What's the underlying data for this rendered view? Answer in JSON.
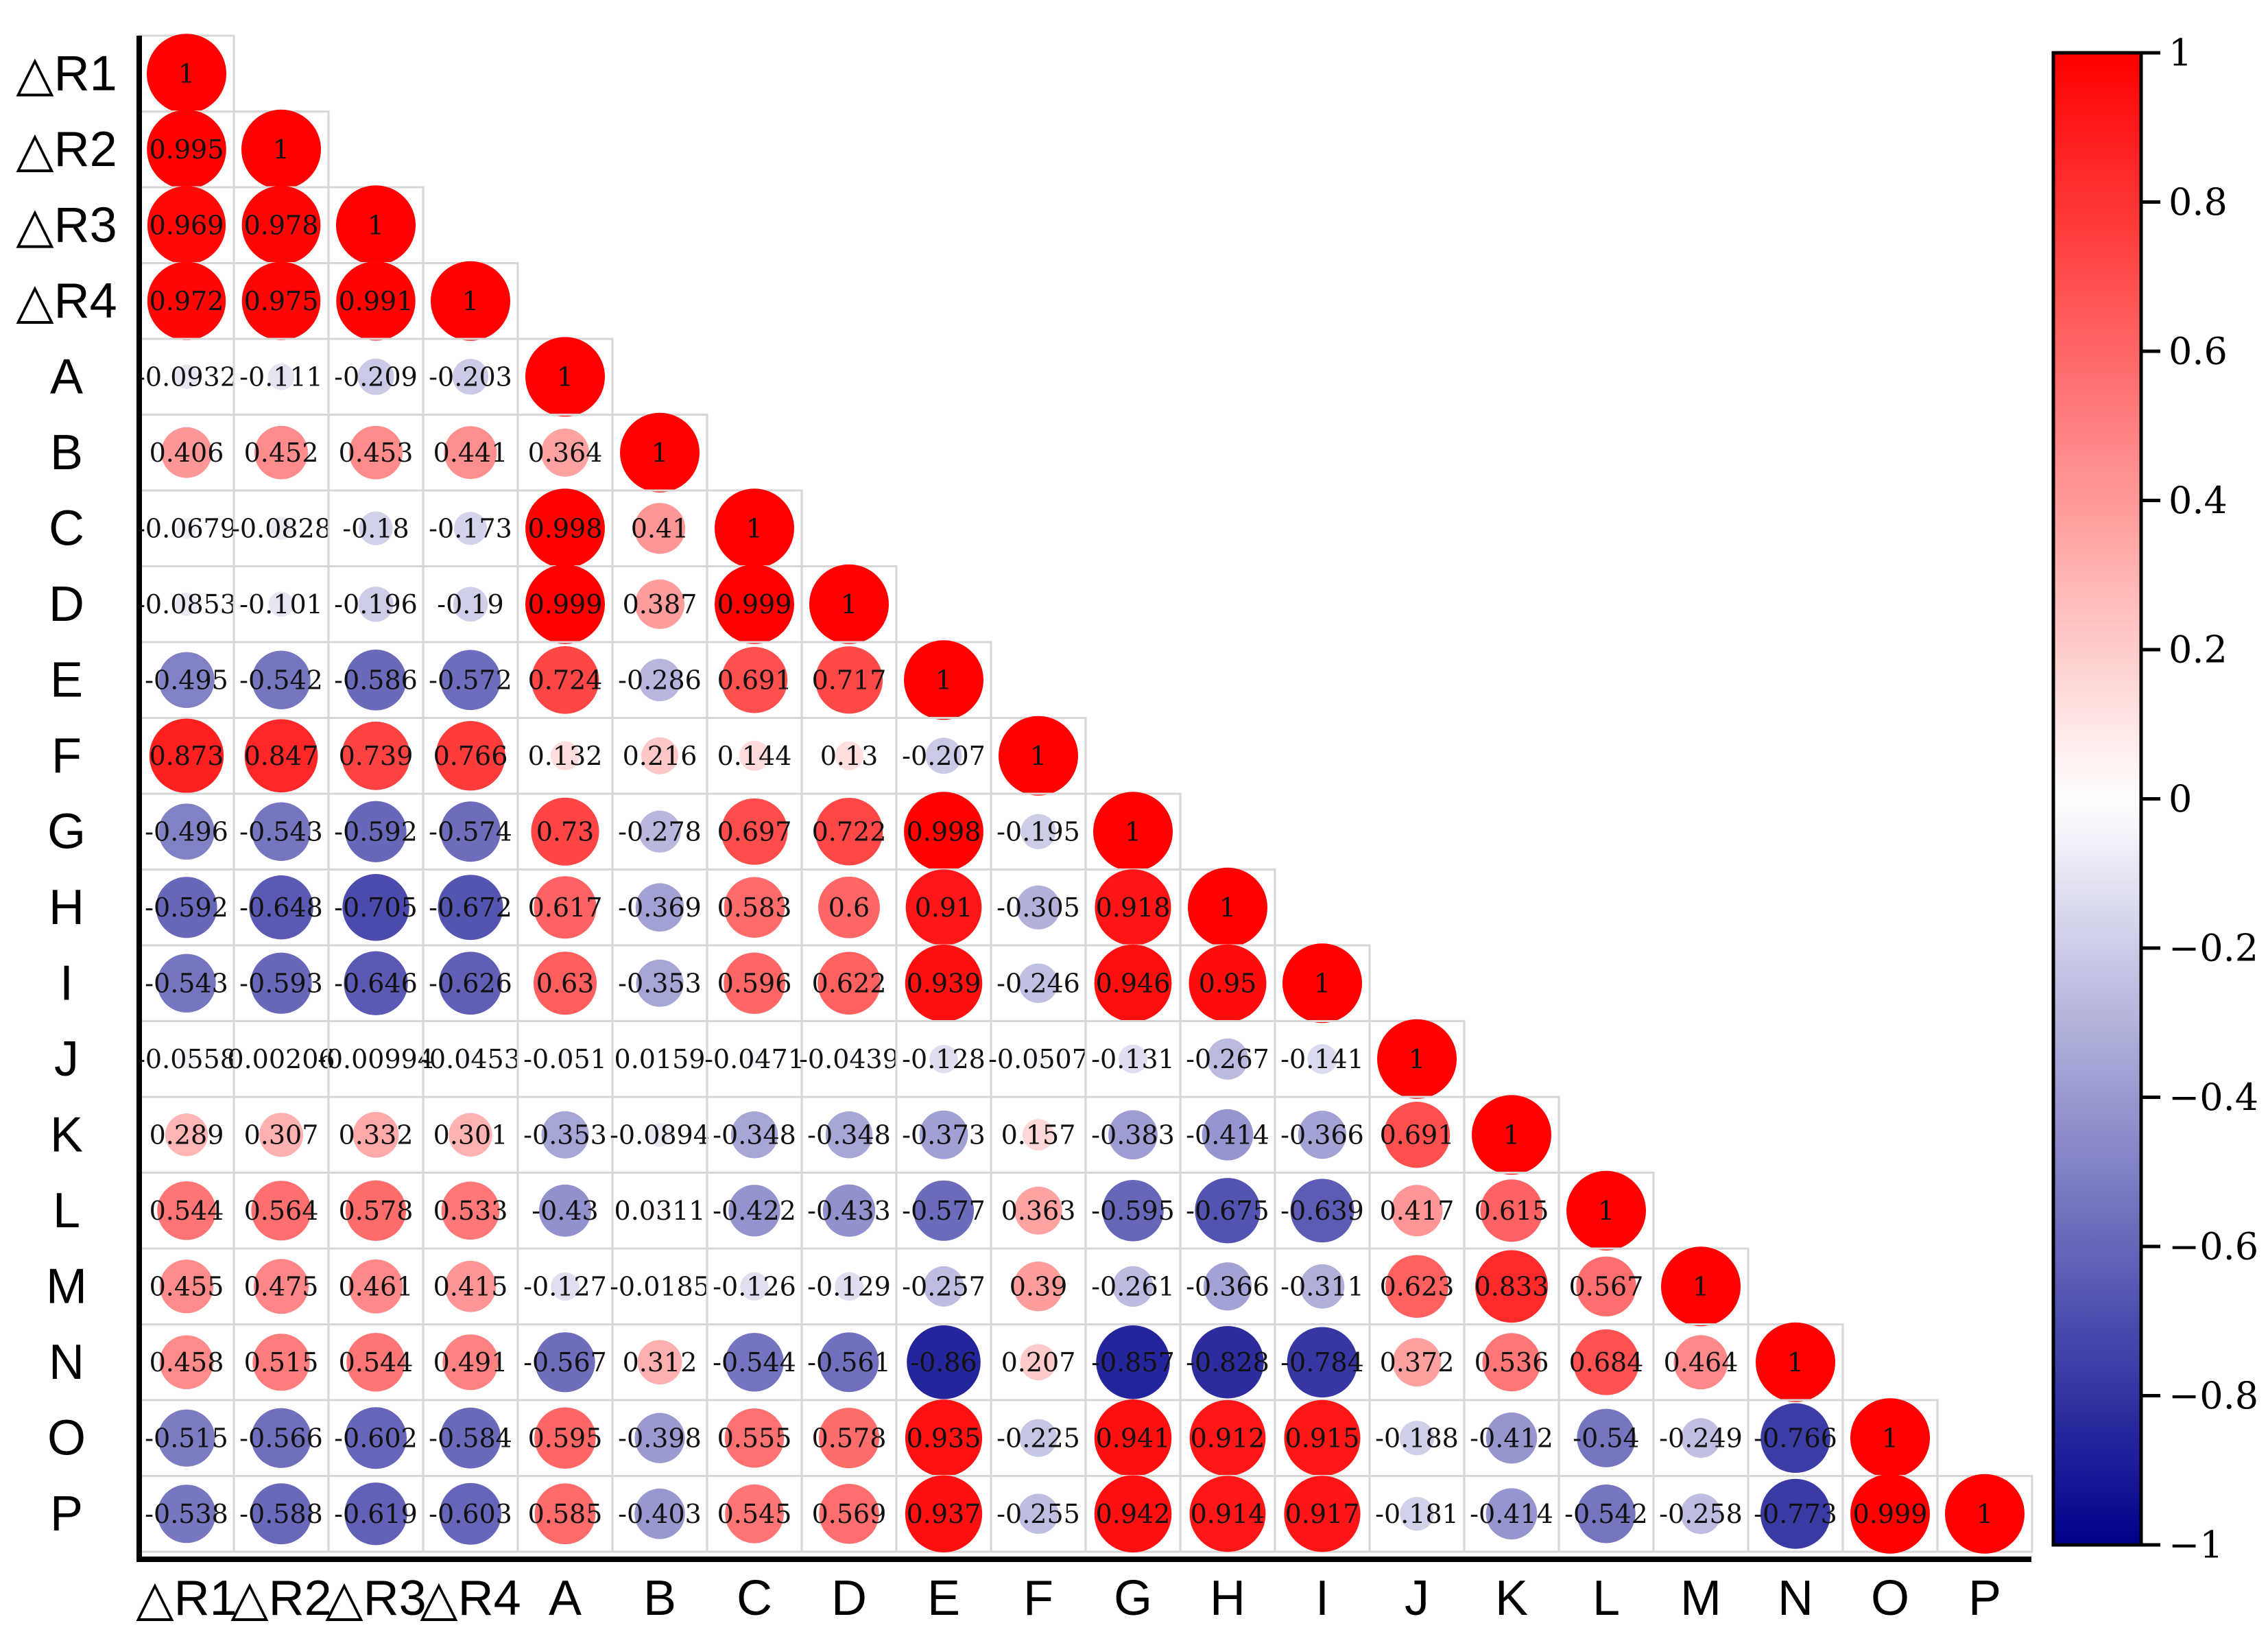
{
  "chart_data": {
    "type": "heatmap",
    "title": "",
    "variables": [
      "△R1",
      "△R2",
      "△R3",
      "△R4",
      "A",
      "B",
      "C",
      "D",
      "E",
      "F",
      "G",
      "H",
      "I",
      "J",
      "K",
      "L",
      "M",
      "N",
      "O",
      "P"
    ],
    "matrix_lower_triangle": [
      [
        "1"
      ],
      [
        "0.995",
        "1"
      ],
      [
        "0.969",
        "0.978",
        "1"
      ],
      [
        "0.972",
        "0.975",
        "0.991",
        "1"
      ],
      [
        "-0.0932",
        "-0.111",
        "-0.209",
        "-0.203",
        "1"
      ],
      [
        "0.406",
        "0.452",
        "0.453",
        "0.441",
        "0.364",
        "1"
      ],
      [
        "-0.0679",
        "-0.0828",
        "-0.18",
        "-0.173",
        "0.998",
        "0.41",
        "1"
      ],
      [
        "-0.0853",
        "-0.101",
        "-0.196",
        "-0.19",
        "0.999",
        "0.387",
        "0.999",
        "1"
      ],
      [
        "-0.495",
        "-0.542",
        "-0.586",
        "-0.572",
        "0.724",
        "-0.286",
        "0.691",
        "0.717",
        "1"
      ],
      [
        "0.873",
        "0.847",
        "0.739",
        "0.766",
        "0.132",
        "0.216",
        "0.144",
        "0.13",
        "-0.207",
        "1"
      ],
      [
        "-0.496",
        "-0.543",
        "-0.592",
        "-0.574",
        "0.73",
        "-0.278",
        "0.697",
        "0.722",
        "0.998",
        "-0.195",
        "1"
      ],
      [
        "-0.592",
        "-0.648",
        "-0.705",
        "-0.672",
        "0.617",
        "-0.369",
        "0.583",
        "0.6",
        "0.91",
        "-0.305",
        "0.918",
        "1"
      ],
      [
        "-0.543",
        "-0.593",
        "-0.646",
        "-0.626",
        "0.63",
        "-0.353",
        "0.596",
        "0.622",
        "0.939",
        "-0.246",
        "0.946",
        "0.95",
        "1"
      ],
      [
        "-0.0558",
        "0.00206",
        "-0.00994",
        "-0.0453",
        "-0.051",
        "0.0159",
        "-0.0471",
        "-0.0439",
        "-0.128",
        "-0.0507",
        "-0.131",
        "-0.267",
        "-0.141",
        "1"
      ],
      [
        "0.289",
        "0.307",
        "0.332",
        "0.301",
        "-0.353",
        "-0.0894",
        "-0.348",
        "-0.348",
        "-0.373",
        "0.157",
        "-0.383",
        "-0.414",
        "-0.366",
        "0.691",
        "1"
      ],
      [
        "0.544",
        "0.564",
        "0.578",
        "0.533",
        "-0.43",
        "0.0311",
        "-0.422",
        "-0.433",
        "-0.577",
        "0.363",
        "-0.595",
        "-0.675",
        "-0.639",
        "0.417",
        "0.615",
        "1"
      ],
      [
        "0.455",
        "0.475",
        "0.461",
        "0.415",
        "-0.127",
        "-0.0185",
        "-0.126",
        "-0.129",
        "-0.257",
        "0.39",
        "-0.261",
        "-0.366",
        "-0.311",
        "0.623",
        "0.833",
        "0.567",
        "1"
      ],
      [
        "0.458",
        "0.515",
        "0.544",
        "0.491",
        "-0.567",
        "0.312",
        "-0.544",
        "-0.561",
        "-0.86",
        "0.207",
        "-0.857",
        "-0.828",
        "-0.784",
        "0.372",
        "0.536",
        "0.684",
        "0.464",
        "1"
      ],
      [
        "-0.515",
        "-0.566",
        "-0.602",
        "-0.584",
        "0.595",
        "-0.398",
        "0.555",
        "0.578",
        "0.935",
        "-0.225",
        "0.941",
        "0.912",
        "0.915",
        "-0.188",
        "-0.412",
        "-0.54",
        "-0.249",
        "-0.766",
        "1"
      ],
      [
        "-0.538",
        "-0.588",
        "-0.619",
        "-0.603",
        "0.585",
        "-0.403",
        "0.545",
        "0.569",
        "0.937",
        "-0.255",
        "0.942",
        "0.914",
        "0.917",
        "-0.181",
        "-0.414",
        "-0.542",
        "-0.258",
        "-0.773",
        "0.999",
        "1"
      ]
    ],
    "colorbar": {
      "range": [
        -1,
        1
      ],
      "ticks": [
        "1",
        "0.8",
        "0.6",
        "0.4",
        "0.2",
        "0",
        "−0.2",
        "−0.4",
        "−0.6",
        "−0.8",
        "−1"
      ],
      "colors": {
        "negative": "#00008b",
        "zero": "#ffffff",
        "positive": "#ff0000"
      }
    },
    "marker": "circle sized and colored by correlation",
    "legend_placement": "right"
  }
}
